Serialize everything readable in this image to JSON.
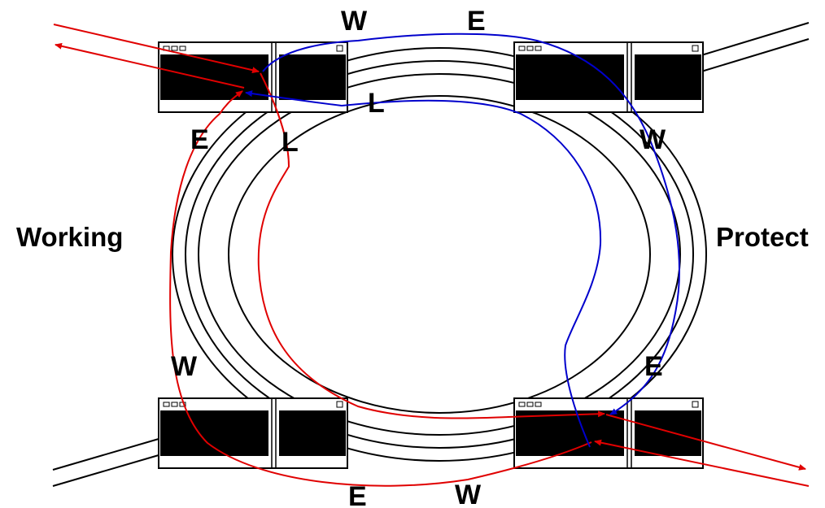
{
  "side_labels": {
    "working": "Working",
    "protect": "Protect"
  },
  "port_labels": {
    "top_left_e": "E",
    "top_left_l": "L",
    "top_w": "W",
    "top_e": "E",
    "top_l": "L",
    "top_right_w": "W",
    "bottom_left_w": "W",
    "bottom_right_e": "E",
    "bottom_e": "E",
    "bottom_w": "W"
  },
  "colors": {
    "ring": "#000000",
    "working_path": "#e00000",
    "protect_path": "#0000cc",
    "node_body": "#000000",
    "node_frame": "#000000"
  },
  "icons": {
    "node": "network-element-icon",
    "ring": "dual-fiber-ring-icon"
  }
}
